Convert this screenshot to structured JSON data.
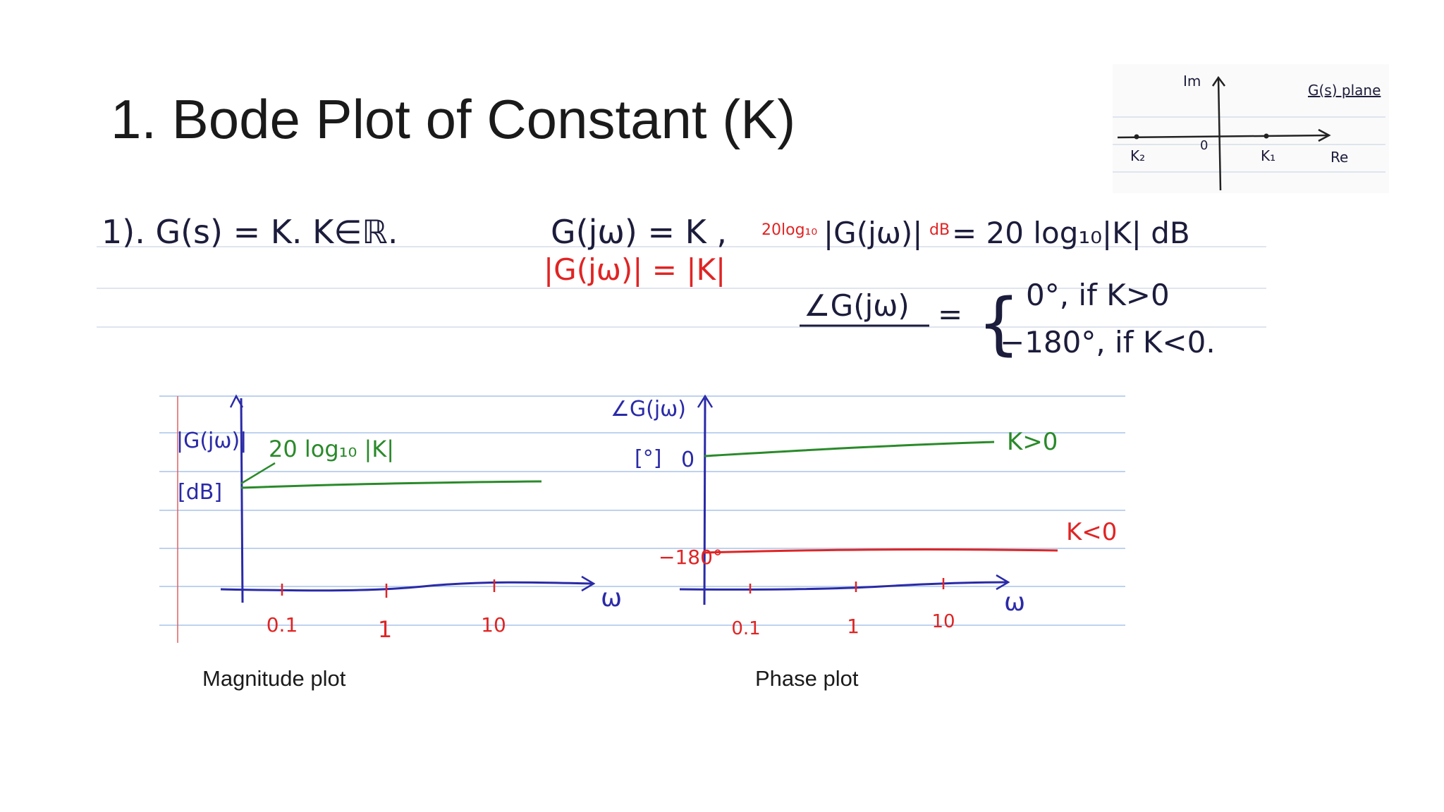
{
  "title": "1. Bode Plot of Constant  (K)",
  "inset": {
    "im": "Im",
    "re": "Re",
    "plane": "G(s) plane",
    "k2": "K₂",
    "origin": "0",
    "k1": "K₁"
  },
  "equations": {
    "definition": "1).  G(s) = K.   K∈ℝ.",
    "frequency": "G(jω) = K ,",
    "magnitude_red": "|G(jω)| = |K|",
    "db_prefix": "20log₁₀",
    "db_middle": "|G(jω)|",
    "db_unit": "dB",
    "db_result": "= 20 log₁₀|K|  dB",
    "phase_lhs": "∠G(jω)",
    "equals": "=",
    "brace": "{",
    "phase_pos": "0°,  if  K>0",
    "phase_neg": "−180°,  if  K<0."
  },
  "magnitude_plot": {
    "y_label": "|G(jω)|",
    "y_unit": "[dB]",
    "line_label": "20 log₁₀ |K|",
    "x_label": "ω",
    "x_ticks": [
      "0.1",
      "1",
      "10"
    ],
    "caption": "Magnitude plot"
  },
  "phase_plot": {
    "y_label": "∠G(jω)",
    "y_unit": "[°]",
    "zero": "0",
    "neg": "−180°",
    "pos_label": "K>0",
    "neg_label": "K<0",
    "x_label": "ω",
    "x_ticks": [
      "0.1",
      "1",
      "10"
    ],
    "caption": "Phase plot"
  }
}
